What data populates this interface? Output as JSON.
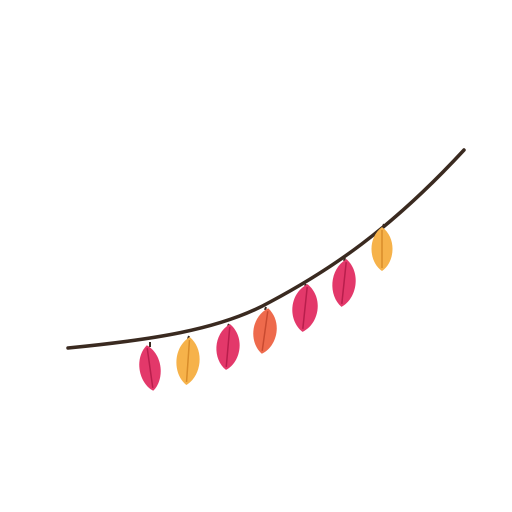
{
  "illustration": {
    "subject": "garland-of-leaves",
    "string_color": "#3a2a20",
    "leaves": [
      {
        "color": "#e3386a",
        "vein": "#b81e4c"
      },
      {
        "color": "#f6b24a",
        "vein": "#d88c2a"
      },
      {
        "color": "#e3386a",
        "vein": "#b81e4c"
      },
      {
        "color": "#ee6a4c",
        "vein": "#c94a30"
      },
      {
        "color": "#e3386a",
        "vein": "#b81e4c"
      },
      {
        "color": "#e3386a",
        "vein": "#b81e4c"
      },
      {
        "color": "#f6b24a",
        "vein": "#d88c2a"
      }
    ]
  }
}
